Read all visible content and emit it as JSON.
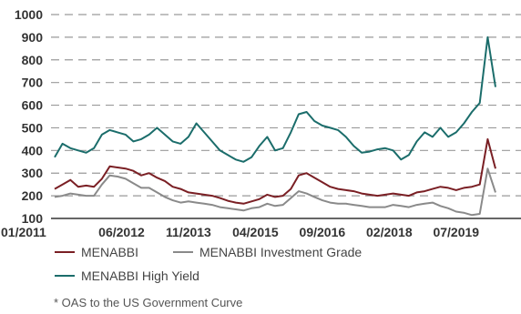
{
  "chart_data": {
    "type": "line",
    "ylim": [
      100,
      1000
    ],
    "yticks": [
      1000,
      900,
      800,
      700,
      600,
      500,
      400,
      300,
      200,
      100
    ],
    "xtick_labels": [
      "01/2011",
      "06/2012",
      "11/2013",
      "04/2015",
      "09/2016",
      "02/2018",
      "07/2019"
    ],
    "grid": "horizontal dashed",
    "legend_position": "bottom",
    "footnote": "* OAS to the US Government Curve",
    "colors": {
      "MENABBI": "#7a1f24",
      "MENABBI Investment Grade": "#8a8a8a",
      "MENABBI High Yield": "#1b6d6b"
    },
    "series": [
      {
        "name": "MENABBI",
        "x": [
          "01/2011",
          "03/2011",
          "05/2011",
          "07/2011",
          "09/2011",
          "11/2011",
          "01/2012",
          "03/2012",
          "05/2012",
          "07/2012",
          "09/2012",
          "11/2012",
          "01/2013",
          "03/2013",
          "05/2013",
          "07/2013",
          "09/2013",
          "11/2013",
          "01/2014",
          "03/2014",
          "05/2014",
          "07/2014",
          "09/2014",
          "11/2014",
          "01/2015",
          "03/2015",
          "05/2015",
          "07/2015",
          "09/2015",
          "11/2015",
          "01/2016",
          "03/2016",
          "05/2016",
          "07/2016",
          "09/2016",
          "11/2016",
          "01/2017",
          "03/2017",
          "05/2017",
          "07/2017",
          "09/2017",
          "11/2017",
          "01/2018",
          "03/2018",
          "05/2018",
          "07/2018",
          "09/2018",
          "11/2018",
          "01/2019",
          "03/2019",
          "05/2019",
          "07/2019",
          "09/2019",
          "11/2019",
          "01/2020",
          "03/2020",
          "05/2020"
        ],
        "values": [
          230,
          250,
          270,
          240,
          245,
          240,
          275,
          330,
          325,
          320,
          310,
          290,
          300,
          280,
          265,
          240,
          230,
          215,
          210,
          205,
          200,
          190,
          178,
          170,
          165,
          175,
          185,
          205,
          195,
          200,
          230,
          290,
          300,
          280,
          260,
          240,
          230,
          225,
          220,
          210,
          205,
          200,
          205,
          210,
          205,
          200,
          215,
          220,
          230,
          240,
          235,
          225,
          235,
          240,
          250,
          450,
          320
        ]
      },
      {
        "name": "MENABBI Investment Grade",
        "x": [
          "01/2011",
          "03/2011",
          "05/2011",
          "07/2011",
          "09/2011",
          "11/2011",
          "01/2012",
          "03/2012",
          "05/2012",
          "07/2012",
          "09/2012",
          "11/2012",
          "01/2013",
          "03/2013",
          "05/2013",
          "07/2013",
          "09/2013",
          "11/2013",
          "01/2014",
          "03/2014",
          "05/2014",
          "07/2014",
          "09/2014",
          "11/2014",
          "01/2015",
          "03/2015",
          "05/2015",
          "07/2015",
          "09/2015",
          "11/2015",
          "01/2016",
          "03/2016",
          "05/2016",
          "07/2016",
          "09/2016",
          "11/2016",
          "01/2017",
          "03/2017",
          "05/2017",
          "07/2017",
          "09/2017",
          "11/2017",
          "01/2018",
          "03/2018",
          "05/2018",
          "07/2018",
          "09/2018",
          "11/2018",
          "01/2019",
          "03/2019",
          "05/2019",
          "07/2019",
          "09/2019",
          "11/2019",
          "01/2020",
          "03/2020",
          "05/2020"
        ],
        "values": [
          195,
          200,
          210,
          205,
          200,
          200,
          250,
          290,
          285,
          275,
          255,
          235,
          235,
          215,
          195,
          180,
          170,
          175,
          170,
          165,
          160,
          150,
          145,
          140,
          135,
          145,
          150,
          165,
          155,
          160,
          190,
          220,
          210,
          195,
          180,
          170,
          165,
          165,
          160,
          155,
          150,
          150,
          150,
          160,
          155,
          150,
          160,
          165,
          170,
          155,
          145,
          130,
          125,
          115,
          120,
          320,
          215
        ]
      },
      {
        "name": "MENABBI High Yield",
        "x": [
          "01/2011",
          "03/2011",
          "05/2011",
          "07/2011",
          "09/2011",
          "11/2011",
          "01/2012",
          "03/2012",
          "05/2012",
          "07/2012",
          "09/2012",
          "11/2012",
          "01/2013",
          "03/2013",
          "05/2013",
          "07/2013",
          "09/2013",
          "11/2013",
          "01/2014",
          "03/2014",
          "05/2014",
          "07/2014",
          "09/2014",
          "11/2014",
          "01/2015",
          "03/2015",
          "05/2015",
          "07/2015",
          "09/2015",
          "11/2015",
          "01/2016",
          "03/2016",
          "05/2016",
          "07/2016",
          "09/2016",
          "11/2016",
          "01/2017",
          "03/2017",
          "05/2017",
          "07/2017",
          "09/2017",
          "11/2017",
          "01/2018",
          "03/2018",
          "05/2018",
          "07/2018",
          "09/2018",
          "11/2018",
          "01/2019",
          "03/2019",
          "05/2019",
          "07/2019",
          "09/2019",
          "11/2019",
          "01/2020",
          "03/2020",
          "05/2020"
        ],
        "values": [
          370,
          430,
          410,
          400,
          390,
          410,
          470,
          490,
          480,
          470,
          440,
          450,
          470,
          500,
          470,
          440,
          430,
          460,
          520,
          480,
          440,
          400,
          380,
          360,
          350,
          370,
          420,
          460,
          400,
          410,
          480,
          560,
          570,
          530,
          510,
          500,
          490,
          460,
          420,
          390,
          395,
          405,
          410,
          400,
          360,
          380,
          440,
          480,
          460,
          500,
          460,
          480,
          520,
          570,
          610,
          900,
          680
        ]
      }
    ]
  }
}
